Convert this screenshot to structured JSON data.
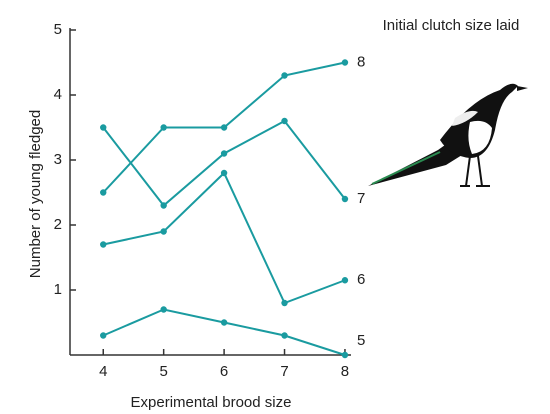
{
  "chart_data": {
    "type": "line",
    "legend_title": "Initial clutch size laid",
    "xlabel": "Experimental brood size",
    "ylabel": "Number of young fledged",
    "x": [
      4,
      5,
      6,
      7,
      8
    ],
    "series": [
      {
        "name": "8",
        "color": "#1a9ba0",
        "values": [
          2.5,
          3.5,
          3.5,
          4.3,
          4.5
        ]
      },
      {
        "name": "7",
        "color": "#1a9ba0",
        "values": [
          3.5,
          2.3,
          3.1,
          3.6,
          2.4
        ]
      },
      {
        "name": "6",
        "color": "#1a9ba0",
        "values": [
          1.7,
          1.9,
          2.8,
          0.8,
          1.15
        ]
      },
      {
        "name": "5",
        "color": "#1a9ba0",
        "values": [
          0.3,
          0.7,
          0.5,
          0.3,
          0
        ]
      }
    ],
    "xlim": [
      3.45,
      8.1
    ],
    "xticks": [
      4,
      5,
      6,
      7,
      8
    ],
    "ylim": [
      0,
      5
    ],
    "yticks": [
      1,
      2,
      3,
      4,
      5
    ],
    "grid": false
  }
}
